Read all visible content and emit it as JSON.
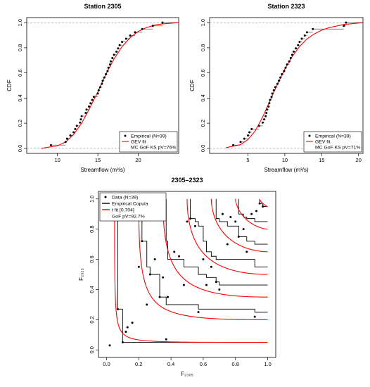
{
  "chart_data": [
    {
      "type": "ecdf",
      "title": "Station 2305",
      "xlabel": "Streamflow (m³/s)",
      "ylabel": "CDF",
      "xlim": [
        6.2,
        25
      ],
      "ylim": [
        -0.04,
        1.04
      ],
      "xticks": [
        10,
        15,
        20
      ],
      "yticks": [
        {
          "value": 0,
          "label": "0.0"
        },
        0.2,
        0.4,
        0.6,
        0.8,
        {
          "value": 1,
          "label": "1.0"
        }
      ],
      "series": [
        {
          "name": "Empirical (N=39)",
          "color": "#000000",
          "x": [
            9.2,
            11.0,
            11.2,
            11.6,
            12.0,
            12.2,
            12.4,
            12.8,
            12.9,
            13.0,
            13.5,
            13.6,
            13.9,
            14.1,
            14.3,
            14.5,
            15.0,
            15.1,
            15.3,
            15.5,
            15.6,
            15.8,
            16.0,
            16.2,
            16.3,
            16.5,
            16.6,
            16.8,
            17.0,
            17.3,
            17.5,
            17.7,
            18.0,
            18.5,
            19.0,
            19.6,
            20.5,
            21.8,
            23.0
          ],
          "values": [
            0.026,
            0.051,
            0.077,
            0.103,
            0.128,
            0.154,
            0.179,
            0.205,
            0.231,
            0.256,
            0.282,
            0.308,
            0.333,
            0.359,
            0.385,
            0.41,
            0.436,
            0.462,
            0.487,
            0.513,
            0.538,
            0.564,
            0.59,
            0.615,
            0.641,
            0.667,
            0.692,
            0.718,
            0.744,
            0.769,
            0.795,
            0.821,
            0.846,
            0.872,
            0.897,
            0.923,
            0.949,
            0.974,
            1
          ]
        },
        {
          "name": "GEV fit",
          "color": "#ff0000",
          "x": [
            8,
            10,
            11,
            12,
            13,
            14,
            15,
            16,
            17,
            18,
            19,
            20,
            21,
            22,
            23,
            25
          ],
          "values": [
            0,
            0.02,
            0.05,
            0.11,
            0.2,
            0.32,
            0.45,
            0.59,
            0.71,
            0.81,
            0.88,
            0.93,
            0.96,
            0.98,
            0.99,
            1.0
          ]
        }
      ],
      "gof": "MC GoF KS pV=76%"
    },
    {
      "type": "ecdf",
      "title": "Station 2323",
      "xlabel": "Streamflow (m³/s)",
      "ylabel": "CDF",
      "xlim": [
        -0.2,
        20.6
      ],
      "ylim": [
        -0.04,
        1.04
      ],
      "xticks": [
        5,
        10,
        15,
        20
      ],
      "yticks": [
        {
          "value": 0,
          "label": "0.0"
        },
        0.2,
        0.4,
        0.6,
        0.8,
        {
          "value": 1,
          "label": "1.0"
        }
      ],
      "series": [
        {
          "name": "Empirical (N=39)",
          "color": "#000000",
          "x": [
            3.0,
            4.0,
            4.5,
            5.0,
            5.2,
            5.5,
            6.5,
            7.0,
            7.2,
            7.4,
            7.5,
            7.6,
            7.8,
            7.9,
            8.0,
            8.2,
            8.3,
            8.5,
            8.7,
            9.0,
            9.2,
            9.4,
            9.6,
            9.9,
            10.1,
            10.3,
            10.6,
            10.8,
            11.0,
            11.2,
            11.5,
            11.8,
            12.0,
            12.3,
            12.7,
            13.0,
            13.8,
            18.0,
            18.3
          ],
          "values": [
            0.026,
            0.051,
            0.077,
            0.103,
            0.128,
            0.154,
            0.179,
            0.205,
            0.231,
            0.256,
            0.282,
            0.308,
            0.333,
            0.359,
            0.385,
            0.41,
            0.436,
            0.462,
            0.487,
            0.513,
            0.538,
            0.564,
            0.59,
            0.615,
            0.641,
            0.667,
            0.692,
            0.718,
            0.744,
            0.769,
            0.795,
            0.821,
            0.846,
            0.872,
            0.897,
            0.923,
            0.949,
            0.974,
            1
          ]
        },
        {
          "name": "GEV fit",
          "color": "#ff0000",
          "x": [
            2,
            4,
            5,
            6,
            7,
            8,
            9,
            10,
            11,
            12,
            13,
            14,
            15,
            16,
            18,
            20.6
          ],
          "values": [
            0.005,
            0.03,
            0.07,
            0.14,
            0.25,
            0.38,
            0.51,
            0.63,
            0.73,
            0.81,
            0.87,
            0.91,
            0.94,
            0.96,
            0.985,
            1.0
          ]
        }
      ],
      "gof": "MC GoF KS pV=71%"
    },
    {
      "type": "copula",
      "title": "2305–2323",
      "xlabel": "F₂₃₀₅",
      "ylabel": "F₂₃₂₃",
      "xlim": [
        -0.05,
        1.05
      ],
      "ylim": [
        -0.05,
        1.05
      ],
      "xticks": [
        {
          "value": 0,
          "label": "0.0"
        },
        0.2,
        0.4,
        0.6,
        0.8,
        {
          "value": 1,
          "label": "1.0"
        }
      ],
      "yticks": [
        {
          "value": 0,
          "label": "0.0"
        },
        0.2,
        0.4,
        0.6,
        0.8,
        {
          "value": 1,
          "label": "1.0"
        }
      ],
      "series": [
        {
          "name": "Data (N=39)",
          "color": "#000000",
          "x": [
            0.02,
            0.07,
            0.1,
            0.13,
            0.16,
            0.2,
            0.22,
            0.25,
            0.27,
            0.3,
            0.33,
            0.35,
            0.37,
            0.38,
            0.42,
            0.45,
            0.48,
            0.5,
            0.52,
            0.55,
            0.57,
            0.6,
            0.62,
            0.65,
            0.68,
            0.7,
            0.72,
            0.75,
            0.77,
            0.8,
            0.82,
            0.85,
            0.87,
            0.9,
            0.92,
            0.93,
            0.95,
            0.97,
            0.12
          ],
          "values": [
            0.03,
            0.27,
            0.05,
            0.15,
            0.18,
            0.55,
            0.72,
            0.3,
            0.5,
            0.6,
            0.35,
            0.48,
            0.07,
            0.35,
            0.65,
            0.62,
            0.43,
            0.85,
            0.87,
            0.82,
            0.25,
            0.6,
            0.43,
            0.55,
            0.45,
            0.4,
            0.9,
            0.7,
            0.88,
            0.85,
            0.75,
            0.8,
            0.65,
            0.9,
            0.22,
            0.92,
            0.97,
            0.95,
            0.12
          ]
        }
      ],
      "empirical": {
        "name": "Empirical Copula",
        "color": "#000000"
      },
      "fit": {
        "name": "t fit [0.704]",
        "color": "#ff0000",
        "rho": 0.704
      },
      "contour_levels": [
        0.05,
        0.2,
        0.35,
        0.5,
        0.65,
        0.8,
        0.95
      ],
      "gof": "GoF pV=92.7%"
    }
  ]
}
